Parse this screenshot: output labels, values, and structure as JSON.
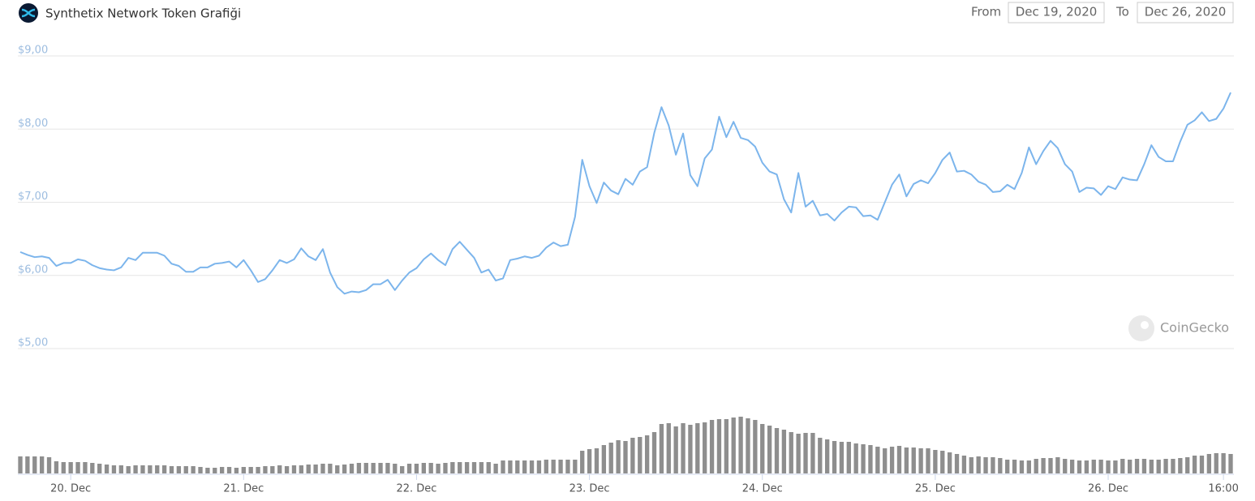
{
  "controls": {
    "from_label": "From",
    "from_date": "Dec 19, 2020",
    "to_label": "To",
    "to_date": "Dec 26, 2020"
  },
  "watermark": "CoinGecko",
  "chart_data": [
    {
      "type": "line",
      "title": "Synthetix Network Token Grafiği",
      "color": "#7cb5ec",
      "grid": true,
      "xlim": [
        0,
        168
      ],
      "xticks": [
        {
          "value": 7,
          "label": "20. Dec"
        },
        {
          "value": 31,
          "label": "21. Dec"
        },
        {
          "value": 55,
          "label": "22. Dec"
        },
        {
          "value": 79,
          "label": "23. Dec"
        },
        {
          "value": 103,
          "label": "24. Dec"
        },
        {
          "value": 127,
          "label": "25. Dec"
        },
        {
          "value": 151,
          "label": "26. Dec"
        },
        {
          "value": 167,
          "label": "16:00"
        }
      ],
      "ylim": [
        5,
        9
      ],
      "yticks": [
        {
          "value": 9,
          "label": "$9,00"
        },
        {
          "value": 8,
          "label": "$8,00"
        },
        {
          "value": 7,
          "label": "$7,00"
        },
        {
          "value": 6,
          "label": "$6,00"
        },
        {
          "value": 5,
          "label": "$5,00"
        }
      ],
      "values": [
        6.32,
        6.28,
        6.25,
        6.26,
        6.24,
        6.13,
        6.17,
        6.17,
        6.22,
        6.2,
        6.14,
        6.1,
        6.08,
        6.07,
        6.11,
        6.24,
        6.21,
        6.31,
        6.31,
        6.31,
        6.27,
        6.16,
        6.13,
        6.05,
        6.05,
        6.11,
        6.11,
        6.16,
        6.17,
        6.19,
        6.11,
        6.21,
        6.07,
        5.91,
        5.95,
        6.07,
        6.21,
        6.17,
        6.22,
        6.37,
        6.26,
        6.21,
        6.36,
        6.04,
        5.84,
        5.75,
        5.78,
        5.77,
        5.8,
        5.88,
        5.88,
        5.94,
        5.8,
        5.93,
        6.04,
        6.1,
        6.22,
        6.3,
        6.21,
        6.14,
        6.36,
        6.46,
        6.35,
        6.24,
        6.04,
        6.08,
        5.93,
        5.96,
        6.21,
        6.23,
        6.26,
        6.24,
        6.27,
        6.38,
        6.45,
        6.4,
        6.42,
        6.8,
        7.58,
        7.22,
        6.99,
        7.27,
        7.16,
        7.11,
        7.32,
        7.24,
        7.42,
        7.48,
        7.95,
        8.3,
        8.05,
        7.65,
        7.94,
        7.37,
        7.22,
        7.6,
        7.72,
        8.17,
        7.89,
        8.1,
        7.88,
        7.85,
        7.76,
        7.54,
        7.42,
        7.38,
        7.04,
        6.86,
        7.4,
        6.94,
        7.02,
        6.82,
        6.84,
        6.75,
        6.86,
        6.94,
        6.93,
        6.81,
        6.82,
        6.76,
        7.0,
        7.24,
        7.38,
        7.08,
        7.25,
        7.3,
        7.26,
        7.4,
        7.58,
        7.68,
        7.42,
        7.43,
        7.38,
        7.28,
        7.24,
        7.14,
        7.15,
        7.24,
        7.18,
        7.4,
        7.75,
        7.52,
        7.7,
        7.84,
        7.74,
        7.52,
        7.42,
        7.14,
        7.2,
        7.19,
        7.1,
        7.22,
        7.18,
        7.34,
        7.31,
        7.3,
        7.52,
        7.78,
        7.62,
        7.56,
        7.56,
        7.83,
        8.06,
        8.12,
        8.23,
        8.11,
        8.14,
        8.28,
        8.5
      ]
    },
    {
      "type": "bar",
      "color": "#8e8e8e",
      "values": [
        21,
        21,
        21,
        21,
        20,
        15,
        14,
        14,
        14,
        14,
        13,
        12,
        11,
        10,
        10,
        9,
        10,
        10,
        10,
        10,
        10,
        9,
        9,
        9,
        9,
        8,
        7,
        7,
        8,
        8,
        7,
        8,
        8,
        8,
        9,
        9,
        10,
        9,
        10,
        10,
        11,
        11,
        12,
        12,
        10,
        11,
        12,
        13,
        13,
        13,
        13,
        13,
        12,
        9,
        12,
        12,
        13,
        13,
        12,
        13,
        14,
        14,
        14,
        14,
        14,
        14,
        12,
        16,
        16,
        16,
        16,
        16,
        16,
        17,
        17,
        17,
        17,
        17,
        28,
        30,
        31,
        35,
        38,
        41,
        40,
        44,
        45,
        47,
        51,
        61,
        62,
        58,
        62,
        60,
        62,
        63,
        66,
        67,
        67,
        69,
        70,
        68,
        66,
        61,
        59,
        56,
        54,
        51,
        49,
        50,
        50,
        44,
        42,
        40,
        39,
        39,
        37,
        36,
        35,
        33,
        31,
        33,
        34,
        32,
        32,
        31,
        31,
        29,
        28,
        26,
        24,
        22,
        20,
        21,
        20,
        20,
        19,
        17,
        17,
        16,
        16,
        18,
        19,
        19,
        20,
        18,
        17,
        16,
        16,
        17,
        17,
        16,
        16,
        18,
        17,
        18,
        18,
        17,
        17,
        18,
        18,
        19,
        20,
        22,
        22,
        24,
        25,
        25,
        24
      ]
    }
  ]
}
